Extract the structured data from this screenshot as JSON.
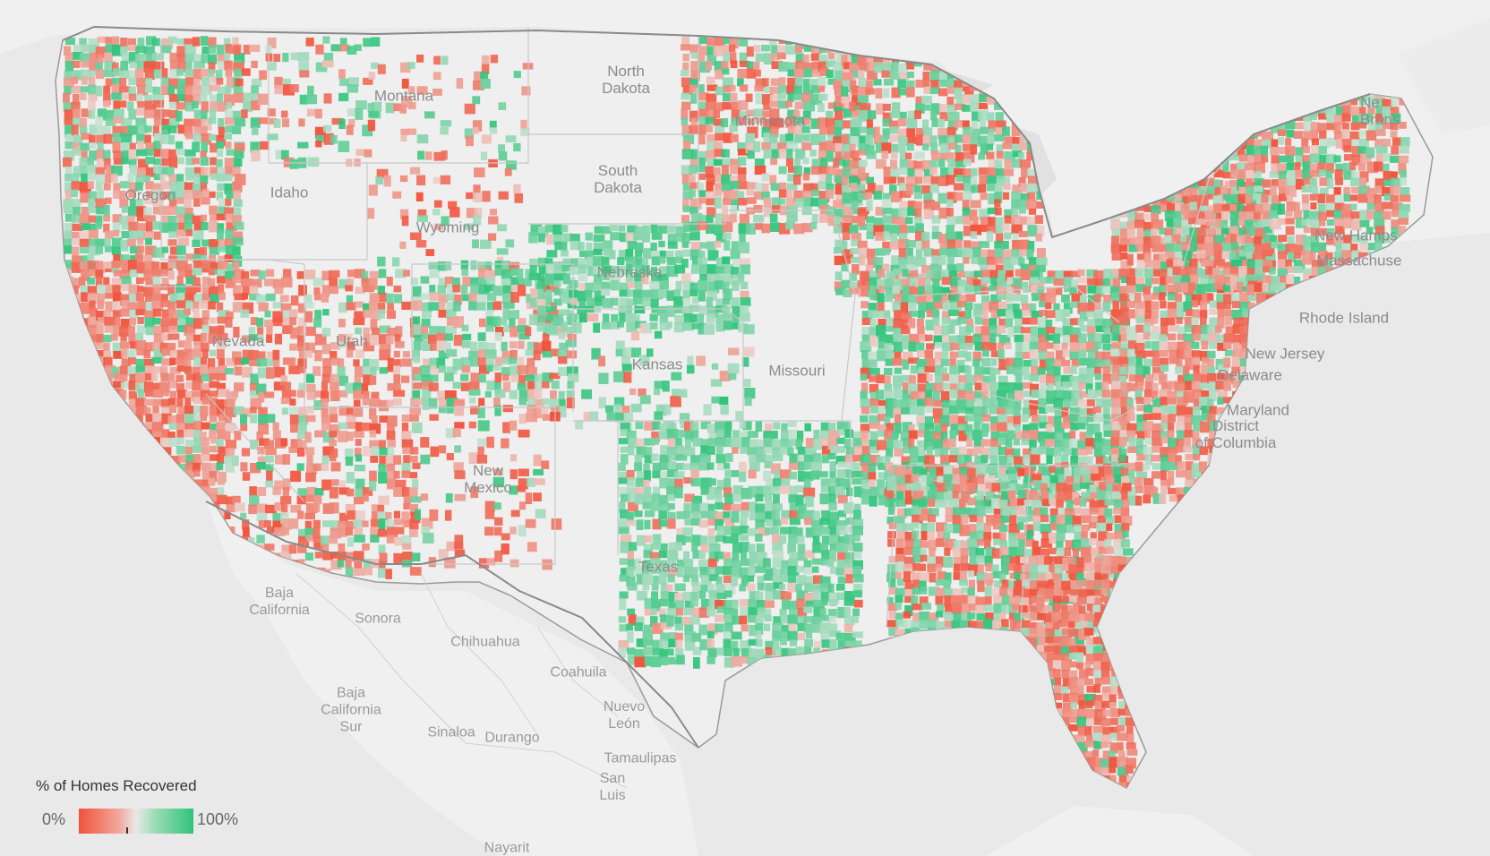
{
  "legend": {
    "title": "% of Homes Recovered",
    "min_label": "0%",
    "max_label": "100%"
  },
  "colors": {
    "low": "#f0533c",
    "mid": "#e8e8e8",
    "high": "#2fc47a",
    "land": "#efefef",
    "water": "#e3e3e3",
    "border": "#8a8a8a"
  },
  "labels": {
    "montana": "Montana",
    "north_dakota": "North\nDakota",
    "south_dakota": "South\nDakota",
    "oregon": "Oregon",
    "idaho": "Idaho",
    "wyoming": "Wyoming",
    "nevada": "Nevada",
    "utah": "Utah",
    "nebraska": "Nebraska",
    "kansas": "Kansas",
    "missouri": "Missouri",
    "minnesota": "Minnesota",
    "new_mexico": "New\nMexico",
    "texas": "Texas",
    "new_hampshire": "New Hamps",
    "massachusetts": "Massachuse",
    "rhode_island": "Rhode Island",
    "new_jersey": "New Jersey",
    "delaware": "Delaware",
    "maryland": "Maryland",
    "dc": "District\nof Columbia",
    "new_brunswick": "Ne\nBruns",
    "baja_california": "Baja\nCalifornia",
    "sonora": "Sonora",
    "chihuahua": "Chihuahua",
    "coahuila": "Coahuila",
    "baja_california_sur": "Baja\nCalifornia\nSur",
    "sinaloa": "Sinaloa",
    "durango": "Durango",
    "nuevo_leon": "Nuevo\nLeón",
    "tamaulipas": "Tamaulipas",
    "san_luis": "San\nLuis",
    "nayarit": "Nayarit"
  }
}
